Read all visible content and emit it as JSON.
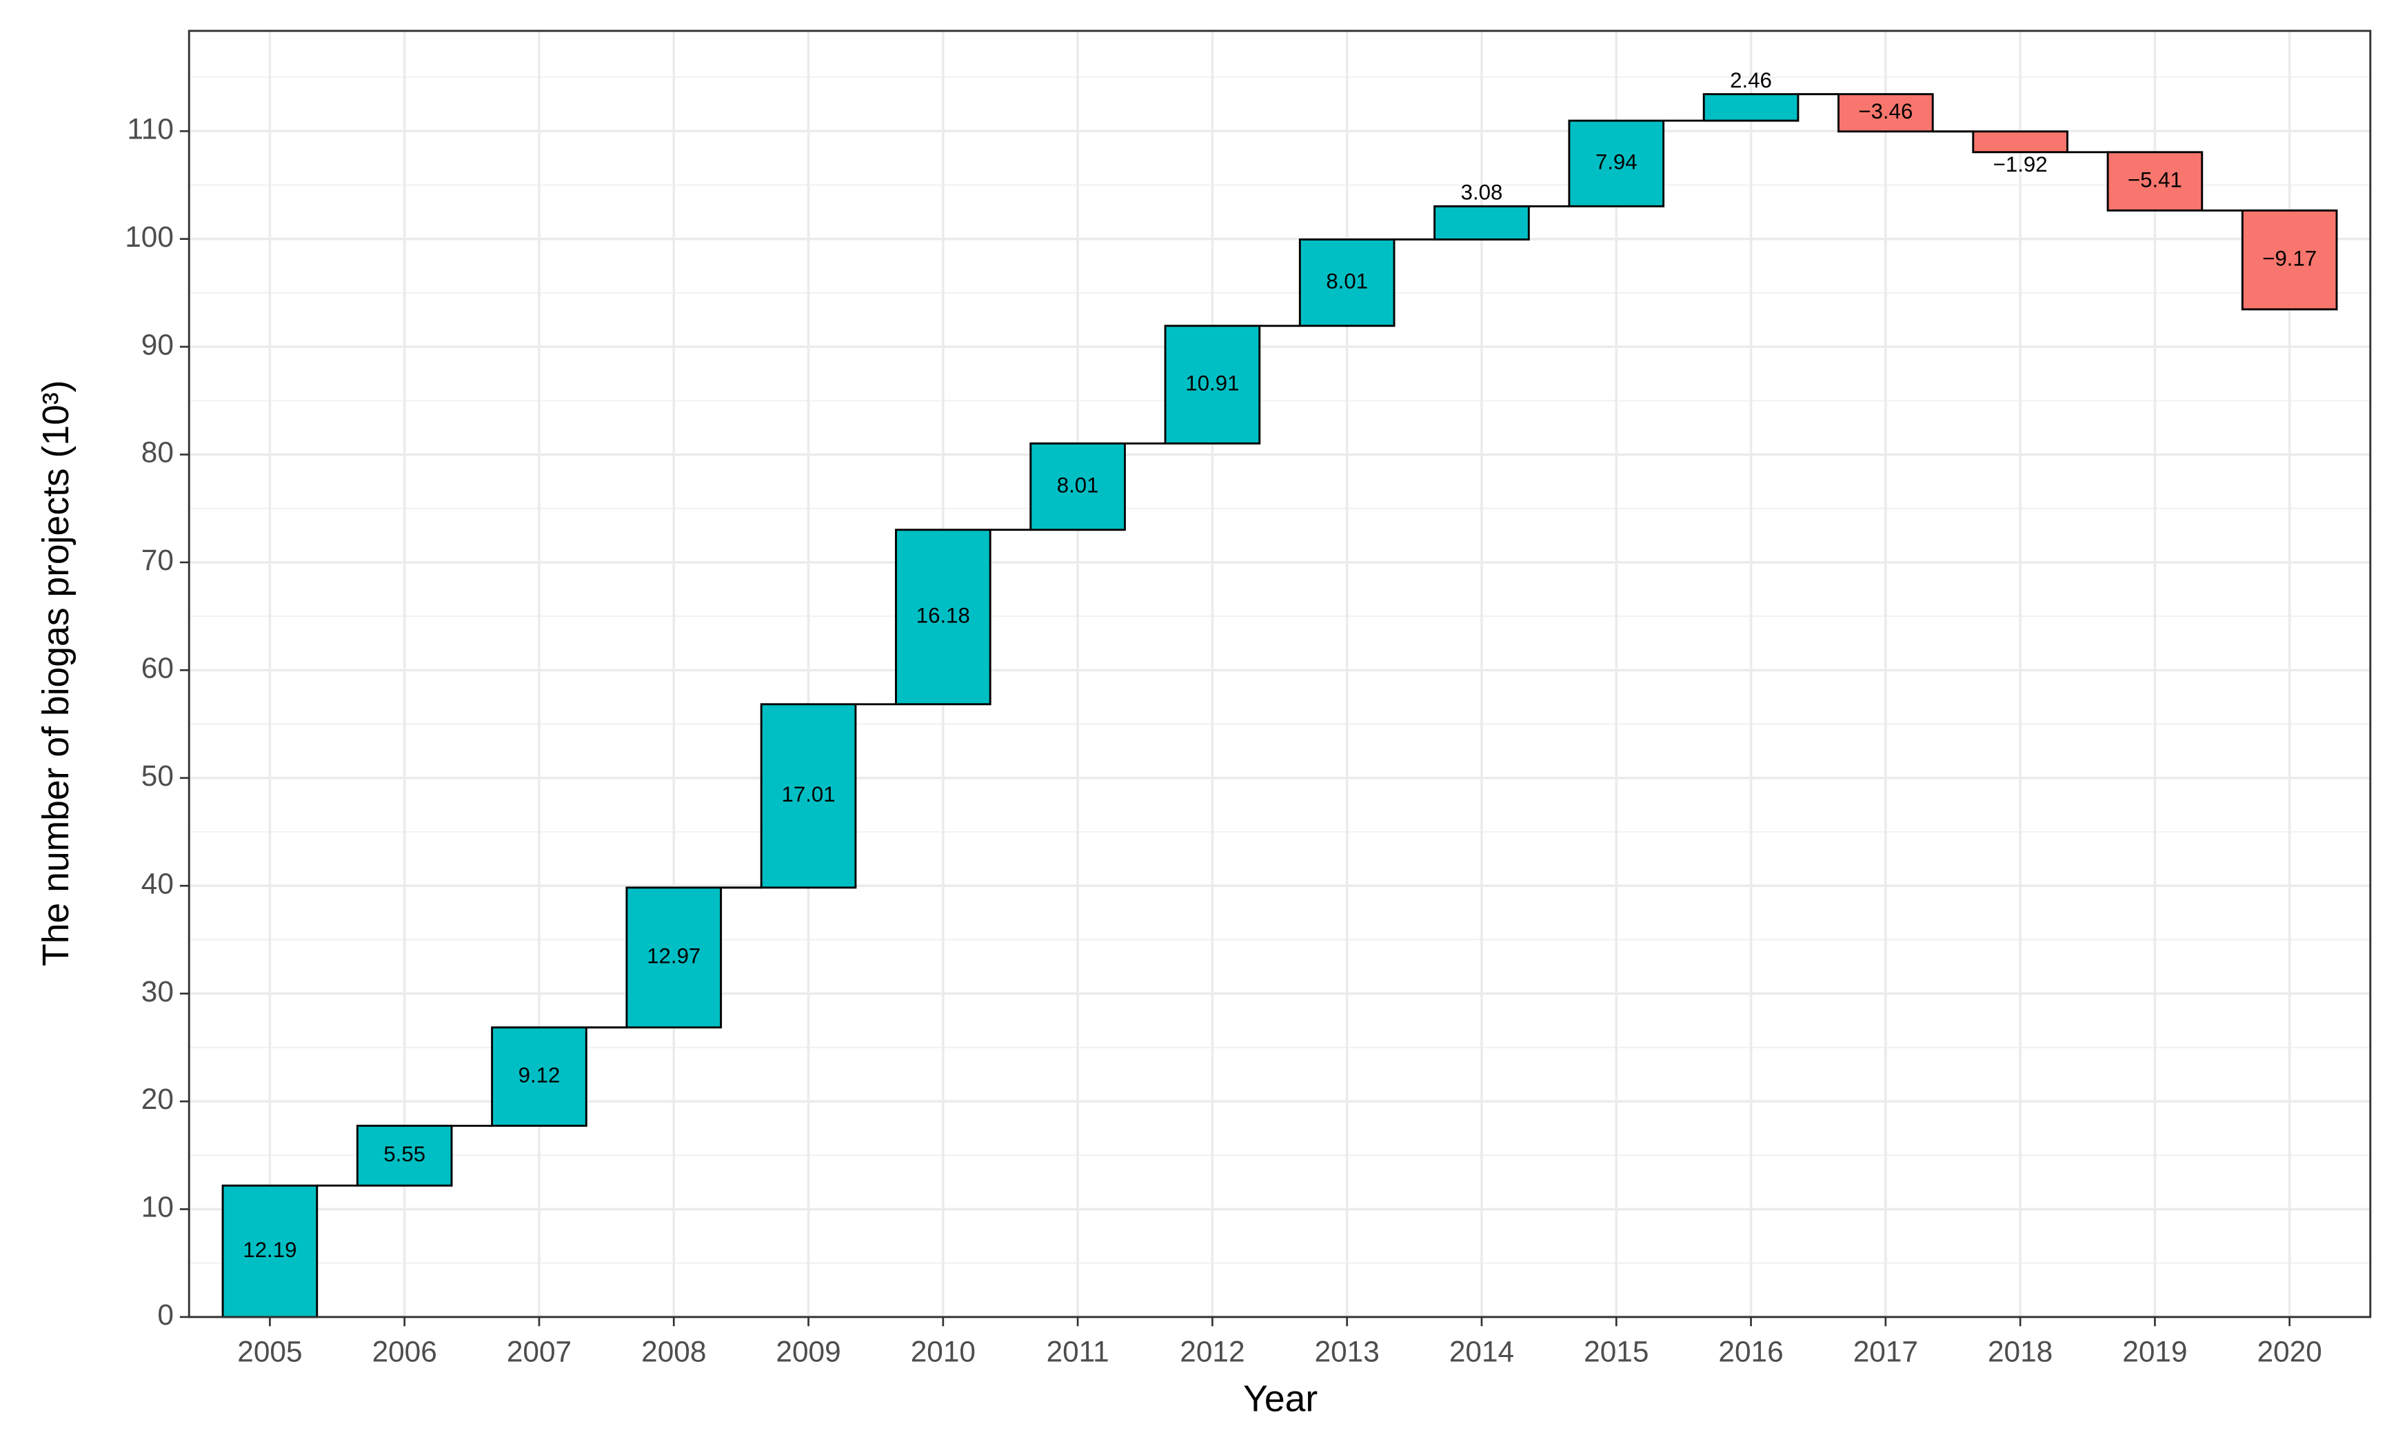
{
  "chart_data": {
    "type": "waterfall",
    "x_label": "Year",
    "y_label": "The number of biogas projects (10³)",
    "categories": [
      "2005",
      "2006",
      "2007",
      "2008",
      "2009",
      "2010",
      "2011",
      "2012",
      "2013",
      "2014",
      "2015",
      "2016",
      "2017",
      "2018",
      "2019",
      "2020"
    ],
    "values": [
      12.19,
      5.55,
      9.12,
      12.97,
      17.01,
      16.18,
      8.01,
      10.91,
      8.01,
      3.08,
      7.94,
      2.46,
      -3.46,
      -1.92,
      -5.41,
      -9.17
    ],
    "value_labels": [
      "12.19",
      "5.55",
      "9.12",
      "12.97",
      "17.01",
      "16.18",
      "8.01",
      "10.91",
      "8.01",
      "3.08",
      "7.94",
      "2.46",
      "−3.46",
      "−1.92",
      "−5.41",
      "−9.17"
    ],
    "increase_color": "#00BFC4",
    "decrease_color": "#F8766D",
    "ylim": [
      0,
      119.3
    ],
    "yticks": [
      0,
      10,
      20,
      30,
      40,
      50,
      60,
      70,
      80,
      90,
      100,
      110
    ],
    "grid": true
  }
}
